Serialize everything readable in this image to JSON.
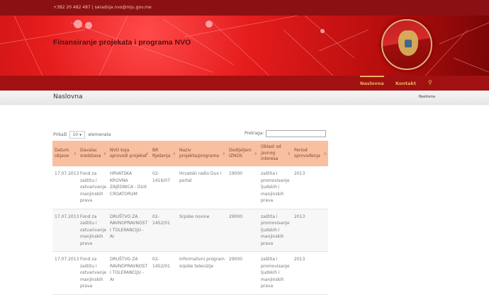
{
  "topbar": {
    "contact": "+382 20 482 487  |  saradnja.nvo@mju.gov.me"
  },
  "header": {
    "title": "Finansiranje projekata i programa NVO"
  },
  "nav": {
    "items": [
      {
        "label": "Naslovna",
        "active": true
      },
      {
        "label": "Kontakt"
      }
    ],
    "search_icon": "search-icon"
  },
  "page": {
    "heading": "Naslovna",
    "breadcrumb": "Naslovna"
  },
  "table_controls": {
    "show_prefix": "Prikaži",
    "show_value": "10",
    "show_suffix": "elemenata",
    "search_label": "Pretraga:",
    "search_value": ""
  },
  "colors": {
    "topbar": "#8a1014",
    "nav": "#a11111",
    "accent": "#f0b060",
    "table_header": "#f9bf9f"
  },
  "table": {
    "columns": [
      "Datum objave",
      "Davalac sredstava",
      "NVO koja sprovodi projekat",
      "BR Rješenja",
      "Naziv projekta/programa",
      "Dodijeljeni IZNOS",
      "Oblast od javnog interesa",
      "Period sprovođenja"
    ],
    "rows": [
      [
        "17.07.2013",
        "Fond za zaštitu i ostvarivanje manjinskih prava",
        "HRVATSKA KROVNA ZAJEDNICA - DUX CROATORUM",
        "02-1416/07",
        "Hrvatski radio Dux i portal",
        "19000",
        "zaštita i promovisanje ljudskih i manjinskih prava",
        "2013"
      ],
      [
        "17.07.2013",
        "Fond za zaštitu i ostvarivanje manjinskih prava",
        "DRUŠTVO ZA RAVNOPRAVNOST I TOLERANCIJU - AI",
        "02-1452/01",
        "Srpske novine",
        "29000",
        "zaštita i promovisanje ljudskih i manjinskih prava",
        "2013"
      ],
      [
        "17.07.2013",
        "Fond za zaštitu i ostvarivanje manjinskih prava",
        "DRUŠTVO ZA RAVNOPRAVNOST I TOLERANCIJU - AI",
        "02-1452/01",
        "Informativni program srpske televizije",
        "29000",
        "zaštita i promovisanje ljudskih i manjinskih prava",
        "2013"
      ]
    ]
  }
}
